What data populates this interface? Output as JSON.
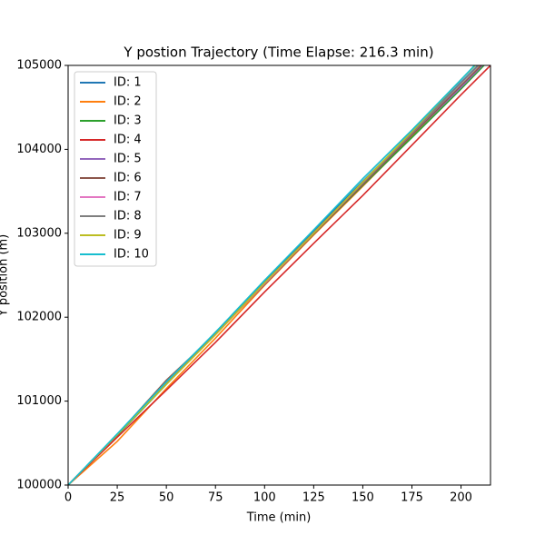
{
  "chart_data": {
    "type": "line",
    "title": "Y postion Trajectory (Time Elapse: 216.3 min)",
    "x_label": "Time (min)",
    "y_label": "Y position (m)",
    "x": [
      0,
      25,
      50,
      75,
      100,
      125,
      150,
      175,
      200,
      215
    ],
    "series": [
      {
        "name": "ID: 1",
        "color": "#1f77b4",
        "values": [
          100000,
          100590,
          101200,
          101800,
          102420,
          103030,
          103620,
          104200,
          104800,
          105150
        ]
      },
      {
        "name": "ID: 2",
        "color": "#ff7f0e",
        "values": [
          100000,
          100520,
          101150,
          101750,
          102380,
          102980,
          103560,
          104150,
          104750,
          105120
        ]
      },
      {
        "name": "ID: 3",
        "color": "#2ca02c",
        "values": [
          100000,
          100590,
          101200,
          101820,
          102400,
          102990,
          103570,
          104140,
          104720,
          105080
        ]
      },
      {
        "name": "ID: 4",
        "color": "#d62728",
        "values": [
          100000,
          100570,
          101130,
          101700,
          102300,
          102880,
          103450,
          104050,
          104650,
          105000
        ]
      },
      {
        "name": "ID: 5",
        "color": "#9467bd",
        "values": [
          100000,
          100600,
          101220,
          101800,
          102400,
          103000,
          103580,
          104170,
          104740,
          105100
        ]
      },
      {
        "name": "ID: 6",
        "color": "#8c564b",
        "values": [
          100000,
          100600,
          101250,
          101800,
          102390,
          102990,
          103580,
          104170,
          104760,
          105110
        ]
      },
      {
        "name": "ID: 7",
        "color": "#e377c2",
        "values": [
          100000,
          100600,
          101210,
          101790,
          102400,
          103000,
          103600,
          104190,
          104790,
          105140
        ]
      },
      {
        "name": "ID: 8",
        "color": "#7f7f7f",
        "values": [
          100000,
          100600,
          101210,
          101800,
          102410,
          103010,
          103600,
          104190,
          104790,
          105140
        ]
      },
      {
        "name": "ID: 9",
        "color": "#bcbd22",
        "values": [
          100000,
          100600,
          101200,
          101790,
          102410,
          103000,
          103610,
          104210,
          104830,
          105180
        ]
      },
      {
        "name": "ID: 10",
        "color": "#17becf",
        "values": [
          100000,
          100610,
          101230,
          101820,
          102440,
          103040,
          103650,
          104230,
          104830,
          105200
        ]
      }
    ],
    "xlim": [
      0,
      215
    ],
    "xticks": [
      0,
      25,
      50,
      75,
      100,
      125,
      150,
      175,
      200
    ],
    "ylim": [
      100000,
      105000
    ],
    "yticks": [
      100000,
      101000,
      102000,
      103000,
      104000,
      105000
    ],
    "legend": "upper left"
  }
}
